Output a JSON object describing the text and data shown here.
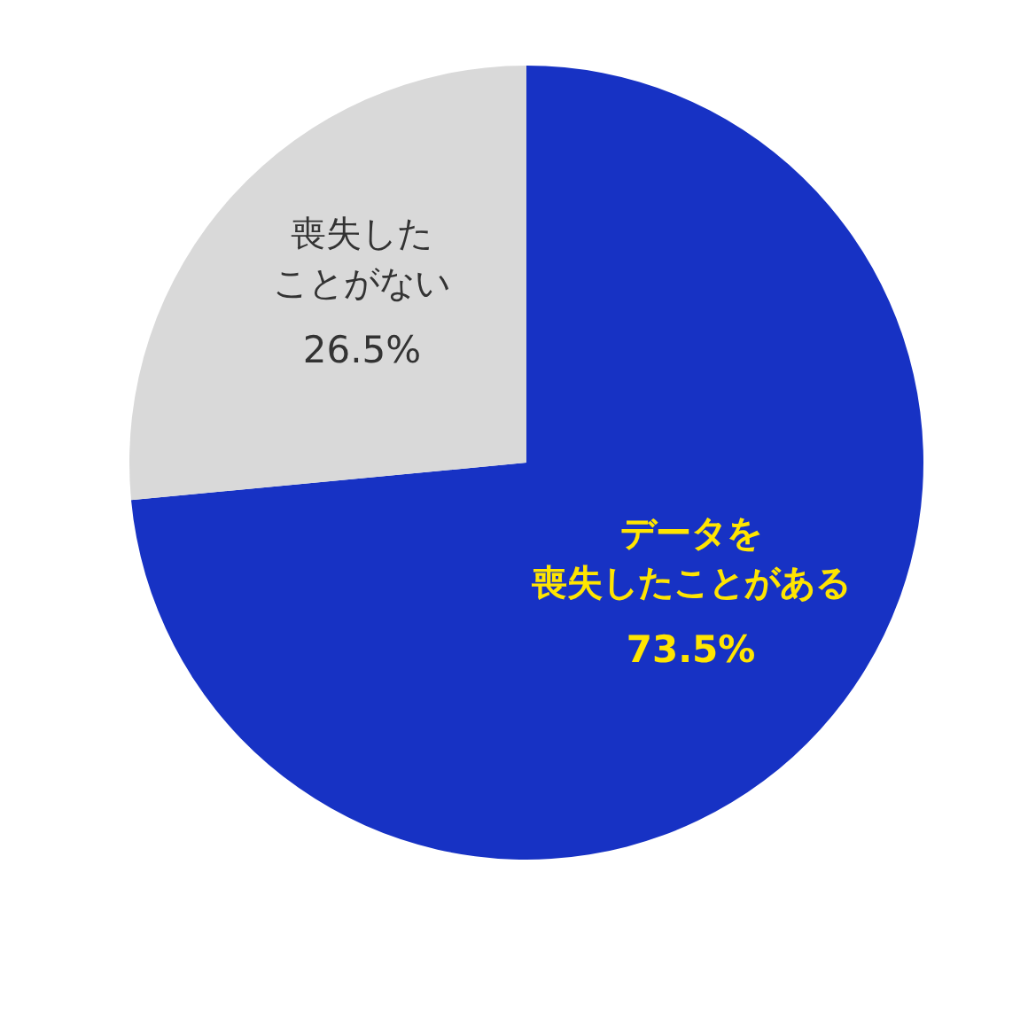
{
  "chart_data": {
    "type": "pie",
    "categories": [
      "データを喪失したことがある",
      "喪失したことがない"
    ],
    "values": [
      73.5,
      26.5
    ],
    "colors": [
      "#1732c4",
      "#d9d9d9"
    ],
    "value_labels": [
      "73.5%",
      "26.5%"
    ]
  }
}
